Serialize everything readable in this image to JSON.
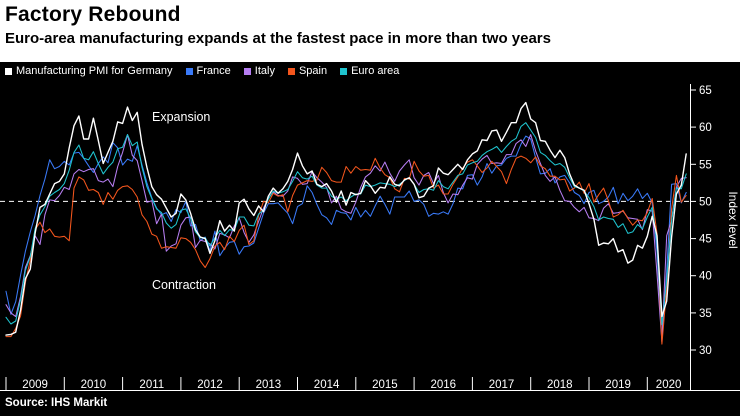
{
  "header": {
    "title": "Factory Rebound",
    "subtitle": "Euro-area manufacturing expands at the fastest pace in more than two years"
  },
  "legend": [
    {
      "label": "Manufacturing PMI for Germany",
      "color": "#ffffff"
    },
    {
      "label": "France",
      "color": "#3a7af8"
    },
    {
      "label": "Italy",
      "color": "#b77ef2"
    },
    {
      "label": "Spain",
      "color": "#f4561d"
    },
    {
      "label": "Euro area",
      "color": "#1fc4cf"
    }
  ],
  "annotations": {
    "expansion": "Expansion",
    "contraction": "Contraction"
  },
  "axis": {
    "y_label": "Index level",
    "y_ticks": [
      30,
      35,
      40,
      45,
      50,
      55,
      60,
      65
    ],
    "x_ticks": [
      2009,
      2010,
      2011,
      2012,
      2013,
      2014,
      2015,
      2016,
      2017,
      2018,
      2019,
      2020
    ],
    "reference_line": 50
  },
  "source": "Source: IHS Markit",
  "chart_data": {
    "type": "line",
    "title": "Factory Rebound",
    "subtitle": "Euro-area manufacturing expands at the fastest pace in more than two years",
    "xlabel": "",
    "ylabel": "Index level",
    "ylim": [
      28,
      66
    ],
    "reference_line": 50,
    "x_start": "2009-01",
    "x_end": "2020-09",
    "frequency": "monthly",
    "x_tick_years": [
      2009,
      2010,
      2011,
      2012,
      2013,
      2014,
      2015,
      2016,
      2017,
      2018,
      2019,
      2020
    ],
    "legend_position": "top",
    "grid": false,
    "series": [
      {
        "name": "Manufacturing PMI for Germany",
        "color": "#ffffff",
        "values": [
          32.0,
          32.1,
          32.4,
          35.4,
          39.6,
          40.9,
          45.7,
          49.2,
          49.6,
          51.0,
          52.4,
          52.7,
          53.7,
          57.2,
          60.2,
          61.5,
          58.4,
          58.4,
          61.2,
          58.2,
          55.1,
          56.6,
          58.1,
          60.7,
          60.5,
          62.7,
          60.9,
          62.0,
          57.7,
          54.6,
          52.0,
          50.9,
          50.3,
          49.1,
          47.9,
          48.4,
          51.0,
          50.2,
          48.4,
          46.2,
          45.2,
          45.0,
          43.0,
          44.7,
          47.4,
          46.0,
          46.8,
          46.0,
          49.8,
          50.3,
          49.0,
          48.1,
          49.4,
          48.6,
          50.7,
          51.8,
          51.1,
          51.7,
          52.7,
          54.3,
          56.5,
          54.8,
          53.7,
          54.1,
          52.3,
          52.0,
          52.4,
          51.4,
          49.9,
          51.4,
          49.5,
          51.2,
          50.9,
          51.1,
          52.8,
          52.1,
          51.1,
          51.9,
          51.8,
          53.3,
          52.3,
          52.1,
          52.9,
          53.2,
          52.3,
          50.5,
          50.7,
          51.8,
          52.1,
          54.5,
          53.8,
          53.6,
          54.3,
          55.0,
          54.3,
          55.6,
          56.4,
          56.8,
          58.3,
          58.2,
          59.5,
          59.6,
          58.1,
          59.3,
          60.6,
          60.6,
          62.5,
          63.3,
          61.1,
          60.6,
          58.2,
          58.1,
          56.9,
          55.9,
          56.9,
          55.9,
          53.7,
          52.2,
          51.8,
          51.5,
          49.7,
          47.6,
          44.1,
          44.4,
          44.3,
          45.0,
          43.2,
          43.5,
          41.7,
          42.1,
          44.1,
          43.7,
          45.3,
          48.0,
          45.4,
          34.5,
          36.6,
          45.2,
          51.0,
          52.2,
          56.4
        ]
      },
      {
        "name": "France",
        "color": "#3a7af8",
        "values": [
          37.9,
          34.8,
          36.5,
          40.1,
          43.3,
          45.9,
          48.1,
          50.8,
          53.0,
          55.6,
          54.4,
          54.7,
          55.4,
          54.9,
          56.5,
          56.6,
          55.8,
          54.8,
          53.9,
          55.1,
          56.0,
          55.2,
          57.9,
          57.2,
          54.9,
          55.7,
          55.4,
          57.5,
          54.9,
          52.5,
          50.5,
          49.1,
          48.2,
          48.5,
          47.3,
          48.9,
          48.5,
          50.0,
          46.7,
          46.9,
          44.7,
          45.2,
          43.4,
          46.0,
          42.7,
          43.7,
          44.5,
          44.6,
          42.9,
          43.9,
          44.0,
          44.4,
          46.4,
          48.4,
          49.7,
          49.7,
          49.8,
          49.1,
          48.4,
          47.0,
          49.3,
          49.7,
          52.1,
          51.2,
          49.6,
          48.2,
          47.8,
          46.9,
          48.8,
          48.5,
          48.4,
          47.5,
          49.2,
          47.9,
          48.8,
          48.0,
          49.4,
          50.7,
          49.6,
          48.3,
          50.6,
          50.6,
          50.6,
          51.4,
          50.0,
          50.2,
          49.6,
          48.0,
          48.4,
          48.3,
          48.6,
          48.3,
          49.7,
          51.8,
          51.7,
          53.5,
          53.6,
          52.2,
          53.3,
          55.1,
          53.8,
          54.8,
          54.9,
          55.8,
          56.1,
          56.1,
          57.7,
          58.8,
          58.4,
          55.9,
          53.7,
          53.8,
          54.4,
          52.5,
          53.3,
          53.5,
          52.5,
          51.2,
          50.8,
          49.7,
          51.2,
          51.5,
          49.7,
          50.0,
          50.6,
          51.9,
          49.7,
          51.1,
          50.1,
          50.7,
          51.7,
          50.4,
          51.1,
          49.8,
          43.2,
          31.5,
          40.6,
          52.3,
          52.4,
          49.8,
          51.2
        ]
      },
      {
        "name": "Italy",
        "color": "#b77ef2",
        "values": [
          36.1,
          35.0,
          34.5,
          37.2,
          41.1,
          42.7,
          45.4,
          44.2,
          48.2,
          50.2,
          50.1,
          50.8,
          51.9,
          51.6,
          53.7,
          54.3,
          54.0,
          54.3,
          54.4,
          52.8,
          52.6,
          53.0,
          52.0,
          54.7,
          56.6,
          59.0,
          56.2,
          55.5,
          52.8,
          49.9,
          50.1,
          47.0,
          48.3,
          43.3,
          44.0,
          44.3,
          46.8,
          47.8,
          47.9,
          43.8,
          44.8,
          44.6,
          44.3,
          43.6,
          45.7,
          45.5,
          45.1,
          46.7,
          47.8,
          45.8,
          44.5,
          45.5,
          47.3,
          49.1,
          50.4,
          51.3,
          50.8,
          50.7,
          51.4,
          53.3,
          53.1,
          52.3,
          52.4,
          54.0,
          53.2,
          52.6,
          51.9,
          49.8,
          50.7,
          49.0,
          48.6,
          48.4,
          49.9,
          51.9,
          53.3,
          53.8,
          54.8,
          54.1,
          55.3,
          53.8,
          52.7,
          54.1,
          54.9,
          55.6,
          53.2,
          52.2,
          53.5,
          53.9,
          52.4,
          53.5,
          51.2,
          49.8,
          51.0,
          50.9,
          52.2,
          53.2,
          53.0,
          55.0,
          55.7,
          56.2,
          55.1,
          55.2,
          55.1,
          56.3,
          56.3,
          57.8,
          58.3,
          57.4,
          59.0,
          56.8,
          55.1,
          53.5,
          52.7,
          53.3,
          51.5,
          50.1,
          50.0,
          49.2,
          48.6,
          49.2,
          47.8,
          47.7,
          47.4,
          49.1,
          49.7,
          48.4,
          48.5,
          48.7,
          47.8,
          47.7,
          47.6,
          46.2,
          48.9,
          48.7,
          40.3,
          31.1,
          45.4,
          47.5,
          51.9,
          53.1,
          53.2
        ]
      },
      {
        "name": "Spain",
        "color": "#f4561d",
        "values": [
          31.8,
          31.8,
          32.9,
          34.6,
          39.1,
          42.1,
          46.2,
          47.2,
          45.8,
          46.3,
          45.3,
          45.2,
          45.3,
          44.7,
          51.8,
          53.3,
          52.9,
          51.5,
          51.6,
          51.2,
          49.6,
          51.2,
          50.3,
          51.5,
          52.0,
          52.1,
          51.6,
          50.6,
          48.2,
          47.3,
          45.6,
          45.3,
          43.7,
          43.9,
          43.8,
          43.7,
          45.1,
          45.0,
          44.5,
          43.5,
          42.0,
          41.1,
          42.3,
          44.0,
          44.5,
          43.5,
          45.3,
          44.6,
          46.1,
          46.8,
          44.2,
          44.7,
          48.1,
          50.0,
          49.8,
          51.1,
          50.7,
          50.9,
          48.6,
          50.8,
          52.2,
          52.5,
          52.8,
          52.7,
          52.9,
          54.6,
          53.9,
          52.8,
          52.6,
          52.6,
          54.7,
          53.8,
          54.7,
          54.2,
          54.3,
          54.2,
          55.8,
          54.5,
          53.6,
          53.2,
          51.7,
          51.3,
          53.1,
          53.0,
          55.4,
          54.1,
          53.4,
          53.5,
          51.8,
          52.2,
          51.0,
          51.0,
          52.3,
          53.3,
          54.5,
          55.3,
          55.6,
          54.8,
          53.9,
          54.5,
          55.4,
          54.7,
          54.0,
          52.4,
          54.3,
          55.8,
          56.1,
          55.8,
          55.2,
          56.0,
          54.8,
          54.4,
          53.4,
          53.4,
          52.9,
          53.0,
          51.4,
          51.8,
          52.6,
          51.1,
          52.4,
          49.9,
          50.9,
          51.8,
          50.1,
          47.9,
          48.2,
          48.8,
          47.7,
          46.8,
          47.5,
          47.4,
          48.5,
          50.4,
          45.7,
          30.8,
          38.3,
          49.0,
          53.5,
          49.9,
          50.8
        ]
      },
      {
        "name": "Euro area",
        "color": "#1fc4cf",
        "values": [
          34.4,
          33.5,
          33.9,
          36.8,
          40.7,
          42.6,
          46.3,
          48.2,
          49.3,
          50.7,
          51.2,
          51.6,
          52.4,
          54.2,
          56.6,
          57.6,
          55.8,
          55.6,
          56.7,
          55.1,
          53.7,
          54.6,
          55.3,
          57.1,
          57.3,
          59.0,
          57.5,
          58.0,
          54.6,
          52.0,
          50.4,
          49.0,
          48.5,
          47.1,
          46.4,
          46.9,
          48.8,
          49.0,
          47.7,
          45.9,
          45.1,
          45.1,
          44.0,
          45.1,
          46.1,
          45.4,
          46.2,
          46.1,
          47.9,
          47.9,
          46.8,
          46.7,
          48.3,
          48.8,
          50.3,
          51.4,
          51.1,
          51.3,
          51.6,
          52.7,
          54.0,
          53.2,
          53.0,
          53.4,
          52.2,
          51.8,
          51.8,
          50.7,
          50.3,
          50.6,
          50.1,
          50.6,
          51.0,
          51.0,
          52.2,
          52.0,
          52.2,
          52.5,
          52.4,
          52.3,
          52.0,
          52.3,
          52.8,
          53.2,
          52.3,
          51.2,
          51.6,
          51.7,
          51.5,
          52.8,
          52.0,
          51.7,
          52.6,
          53.5,
          53.7,
          54.9,
          55.2,
          55.4,
          56.2,
          56.7,
          57.0,
          57.4,
          56.6,
          57.4,
          58.1,
          58.5,
          60.1,
          60.6,
          59.6,
          58.6,
          56.6,
          56.2,
          55.5,
          54.9,
          55.1,
          54.6,
          53.2,
          52.0,
          51.8,
          51.4,
          50.5,
          49.3,
          47.5,
          47.9,
          47.7,
          47.6,
          46.5,
          47.0,
          45.7,
          45.9,
          46.9,
          46.3,
          47.9,
          49.2,
          44.5,
          33.4,
          39.4,
          47.4,
          51.8,
          51.7,
          53.7
        ]
      }
    ],
    "source": "Source: IHS Markit"
  }
}
